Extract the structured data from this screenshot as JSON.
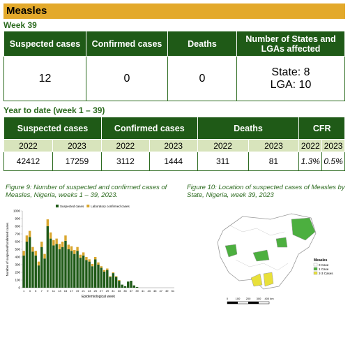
{
  "header": {
    "title": "Measles"
  },
  "week": {
    "label": "Week 39",
    "headers": [
      "Suspected cases",
      "Confirmed cases",
      "Deaths",
      "Number of States and LGAs affected"
    ],
    "values": [
      "12",
      "0",
      "0"
    ],
    "states": "State: 8",
    "lgas": "LGA: 10"
  },
  "ytd": {
    "label": "Year to date (week 1 – 39)",
    "headers": [
      "Suspected cases",
      "Confirmed cases",
      "Deaths",
      "CFR"
    ],
    "years": [
      "2022",
      "2023",
      "2022",
      "2023",
      "2022",
      "2023",
      "2022",
      "2023"
    ],
    "values": [
      "42412",
      "17259",
      "3112",
      "1444",
      "311",
      "81",
      "1.3%",
      "0.5%"
    ]
  },
  "figure9": {
    "caption": "Figure 9: Number of suspected and confirmed cases of Measles, Nigeria, weeks 1 – 39, 2023.",
    "chart_data": {
      "type": "bar",
      "x_label": "Epidemiological week",
      "y_label": "Number of suspected/confirmed cases",
      "categories": [
        "1",
        null,
        "3",
        null,
        "5",
        null,
        "7",
        null,
        "9",
        null,
        "11",
        null,
        "13",
        null,
        "15",
        null,
        "17",
        null,
        "19",
        null,
        "21",
        null,
        "23",
        null,
        "25",
        null,
        "27",
        null,
        "29",
        null,
        "31",
        null,
        "33",
        null,
        "35",
        null,
        "37",
        null,
        "39",
        null,
        "41",
        null,
        "43",
        null,
        "45",
        null,
        "47",
        null,
        "49",
        null,
        "51"
      ],
      "series": [
        {
          "name": "Suspected cases",
          "color": "#1f5a17",
          "values": [
            420,
            600,
            660,
            470,
            420,
            290,
            530,
            380,
            800,
            640,
            550,
            570,
            500,
            530,
            610,
            500,
            480,
            440,
            480,
            390,
            420,
            360,
            340,
            280,
            370,
            300,
            260,
            210,
            230,
            140,
            190,
            140,
            90,
            40,
            20,
            80,
            90,
            30,
            10,
            null,
            null,
            null,
            null,
            null,
            null,
            null,
            null,
            null,
            null,
            null,
            null
          ]
        },
        {
          "name": "Laboratory confirmed cases",
          "color": "#d9a62e",
          "values": [
            60,
            80,
            80,
            60,
            60,
            50,
            70,
            60,
            90,
            80,
            70,
            70,
            70,
            70,
            70,
            60,
            60,
            50,
            50,
            40,
            40,
            40,
            30,
            30,
            30,
            30,
            20,
            20,
            20,
            10,
            10,
            10,
            10,
            0,
            0,
            0,
            0,
            0,
            0,
            null,
            null,
            null,
            null,
            null,
            null,
            null,
            null,
            null,
            null,
            null,
            null
          ]
        }
      ],
      "ylim": [
        0,
        1000
      ],
      "yticks": [
        0,
        100,
        200,
        300,
        400,
        500,
        600,
        700,
        800,
        900,
        1000
      ],
      "stacked": true
    }
  },
  "figure10": {
    "caption": "Figure 10: Location of suspected cases of Measles by State, Nigeria, week 39, 2023",
    "legend": {
      "title": "Measles",
      "items": [
        "0 Case",
        "1 Case",
        "2-3 Cases"
      ]
    },
    "scale": [
      "0",
      "100",
      "200",
      "300",
      "400 km"
    ]
  }
}
